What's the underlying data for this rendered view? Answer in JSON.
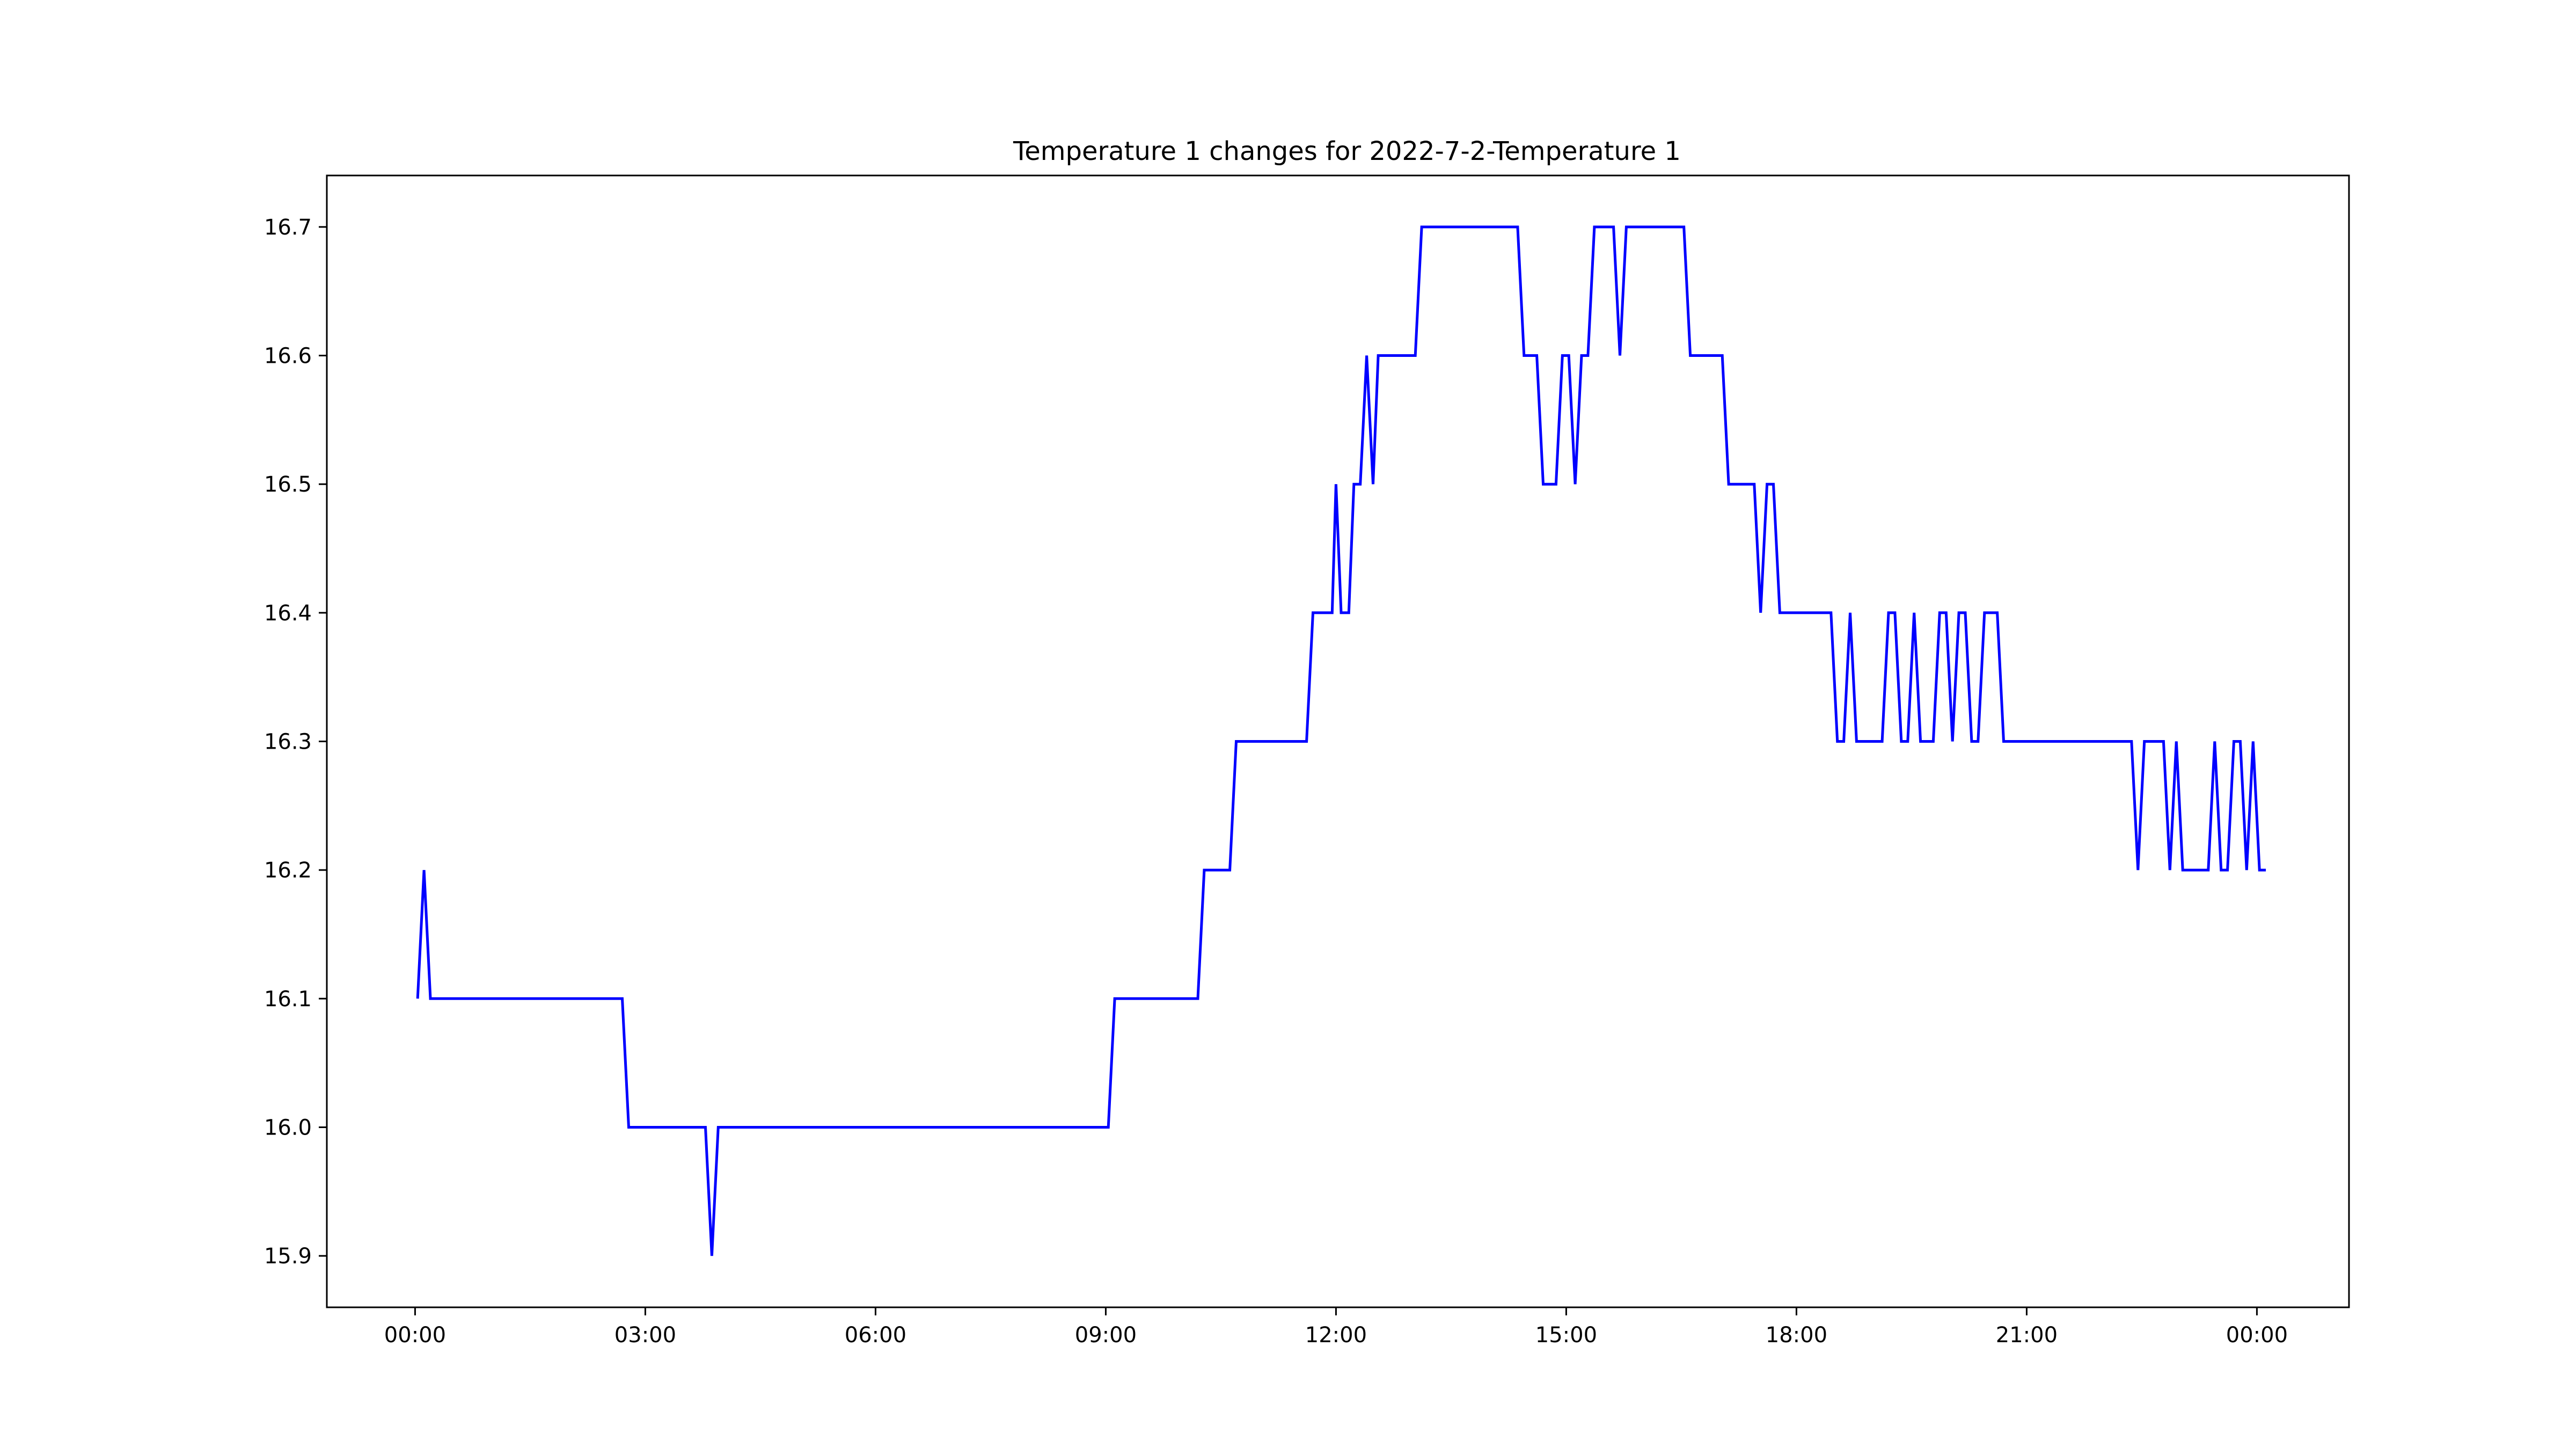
{
  "chart_data": {
    "type": "line",
    "title": "Temperature 1 changes for 2022-7-2-Temperature 1",
    "xlabel": "",
    "ylabel": "",
    "x_tick_labels": [
      "00:00",
      "03:00",
      "06:00",
      "09:00",
      "12:00",
      "15:00",
      "18:00",
      "21:00",
      "00:00"
    ],
    "x_tick_hours": [
      0,
      3,
      6,
      9,
      12,
      15,
      18,
      21,
      24
    ],
    "xlim_hours": [
      -1.15,
      25.2
    ],
    "y_ticks": [
      15.9,
      16.0,
      16.1,
      16.2,
      16.3,
      16.4,
      16.5,
      16.6,
      16.7
    ],
    "y_tick_labels": [
      "15.9",
      "16.0",
      "16.1",
      "16.2",
      "16.3",
      "16.4",
      "16.5",
      "16.6",
      "16.7"
    ],
    "ylim": [
      15.86,
      16.74
    ],
    "grid": false,
    "series": [
      {
        "color": "#0000ff",
        "x": [
          "00:02",
          "00:07",
          "00:12",
          "02:42",
          "02:47",
          "03:47",
          "03:52",
          "03:57",
          "09:02",
          "09:07",
          "10:12",
          "10:17",
          "10:37",
          "10:42",
          "11:37",
          "11:42",
          "11:57",
          "12:00",
          "12:04",
          "12:10",
          "12:14",
          "12:19",
          "12:24",
          "12:29",
          "12:33",
          "12:38",
          "13:02",
          "13:07",
          "14:22",
          "14:27",
          "14:37",
          "14:42",
          "14:52",
          "14:57",
          "15:02",
          "15:07",
          "15:12",
          "15:17",
          "15:22",
          "15:27",
          "15:37",
          "15:42",
          "15:47",
          "16:32",
          "16:37",
          "17:02",
          "17:07",
          "17:27",
          "17:32",
          "17:37",
          "17:42",
          "17:47",
          "18:27",
          "18:32",
          "18:37",
          "18:42",
          "18:47",
          "19:07",
          "19:12",
          "19:17",
          "19:22",
          "19:27",
          "19:32",
          "19:37",
          "19:47",
          "19:52",
          "19:57",
          "20:02",
          "20:07",
          "20:12",
          "20:17",
          "20:22",
          "20:27",
          "20:32",
          "20:37",
          "20:42",
          "22:22",
          "22:27",
          "22:32",
          "22:47",
          "22:52",
          "22:57",
          "23:02",
          "23:22",
          "23:27",
          "23:32",
          "23:37",
          "23:42",
          "23:47",
          "23:52",
          "23:57",
          "24:02",
          "24:07"
        ],
        "y": [
          16.1,
          16.2,
          16.1,
          16.1,
          16.0,
          16.0,
          15.9,
          16.0,
          16.0,
          16.1,
          16.1,
          16.2,
          16.2,
          16.3,
          16.3,
          16.4,
          16.4,
          16.5,
          16.4,
          16.4,
          16.5,
          16.5,
          16.6,
          16.5,
          16.6,
          16.6,
          16.6,
          16.7,
          16.7,
          16.6,
          16.6,
          16.5,
          16.5,
          16.6,
          16.6,
          16.5,
          16.6,
          16.6,
          16.7,
          16.7,
          16.7,
          16.6,
          16.7,
          16.7,
          16.6,
          16.6,
          16.5,
          16.5,
          16.4,
          16.5,
          16.5,
          16.4,
          16.4,
          16.3,
          16.3,
          16.4,
          16.3,
          16.3,
          16.4,
          16.4,
          16.3,
          16.3,
          16.4,
          16.3,
          16.3,
          16.4,
          16.4,
          16.3,
          16.4,
          16.4,
          16.3,
          16.3,
          16.4,
          16.4,
          16.4,
          16.3,
          16.3,
          16.2,
          16.3,
          16.3,
          16.2,
          16.3,
          16.2,
          16.2,
          16.3,
          16.2,
          16.2,
          16.3,
          16.3,
          16.2,
          16.3,
          16.2,
          16.2
        ]
      }
    ]
  }
}
